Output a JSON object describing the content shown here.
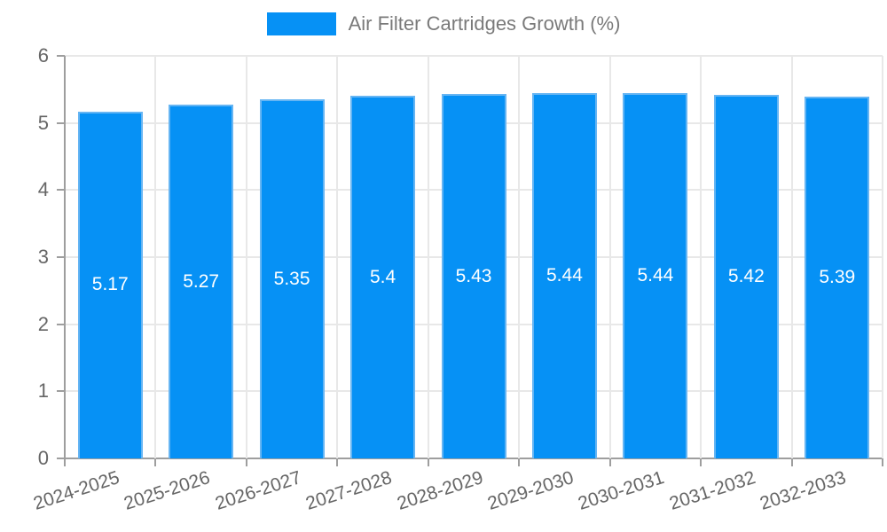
{
  "chart_data": {
    "type": "bar",
    "title": "Air Filter Cartridges Growth (%)",
    "categories": [
      "2024-2025",
      "2025-2026",
      "2026-2027",
      "2027-2028",
      "2028-2029",
      "2029-2030",
      "2030-2031",
      "2031-2032",
      "2032-2033"
    ],
    "values": [
      5.17,
      5.27,
      5.35,
      5.4,
      5.43,
      5.44,
      5.44,
      5.42,
      5.39
    ],
    "value_labels": [
      "5.17",
      "5.27",
      "5.35",
      "5.4",
      "5.43",
      "5.44",
      "5.44",
      "5.42",
      "5.39"
    ],
    "xlabel": "",
    "ylabel": "",
    "ylim": [
      0,
      6
    ],
    "yticks": [
      0,
      1,
      2,
      3,
      4,
      5,
      6
    ],
    "grid": true,
    "legend_position": "top",
    "colors": {
      "bar_fill": "#0691f5",
      "bar_border": "#66b5f3",
      "grid": "#e8e8e8",
      "axis": "#9e9e9e",
      "tick_label": "#666666",
      "title": "#7a7a7a",
      "value_label": "#ffffff"
    }
  }
}
